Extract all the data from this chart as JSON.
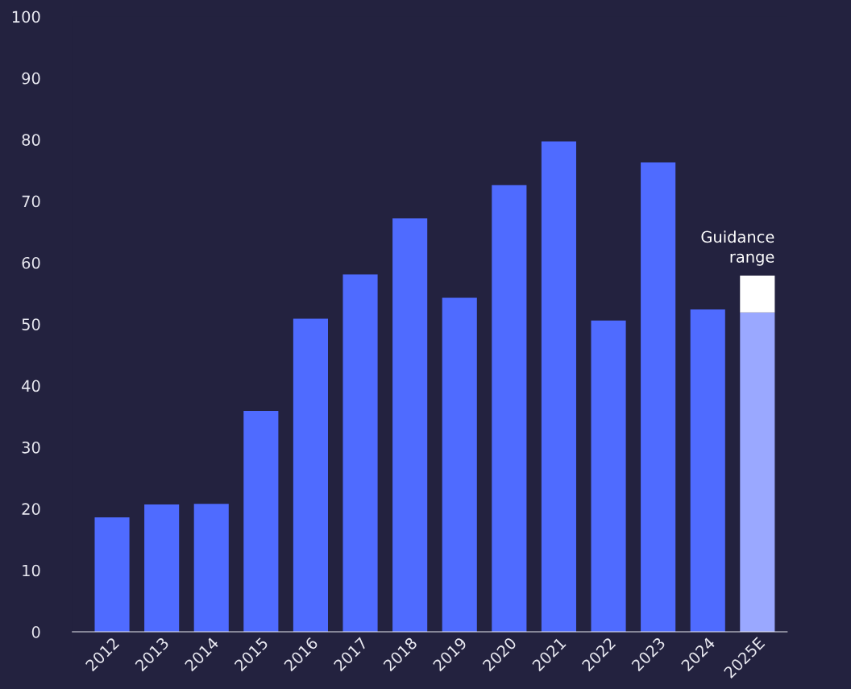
{
  "chart_data": {
    "type": "bar",
    "stacked": true,
    "categories": [
      "2012",
      "2013",
      "2014",
      "2015",
      "2016",
      "2017",
      "2018",
      "2019",
      "2020",
      "2021",
      "2022",
      "2023",
      "2024",
      "2025E"
    ],
    "series": [
      {
        "colors": [
          "#4f6bff",
          "#4f6bff",
          "#4f6bff",
          "#4f6bff",
          "#4f6bff",
          "#4f6bff",
          "#4f6bff",
          "#4f6bff",
          "#4f6bff",
          "#4f6bff",
          "#4f6bff",
          "#4f6bff",
          "#4f6bff",
          "#9aa8ff"
        ],
        "values": [
          18.6,
          20.7,
          20.8,
          35.9,
          50.9,
          58.1,
          67.2,
          54.3,
          72.6,
          79.7,
          50.6,
          76.3,
          52.4,
          51.9
        ]
      },
      {
        "color": "#ffffff",
        "values": [
          null,
          null,
          null,
          null,
          null,
          null,
          null,
          null,
          null,
          null,
          null,
          null,
          null,
          6.0
        ]
      }
    ],
    "ylim": [
      0,
      100
    ],
    "yticks": [
      0,
      10,
      20,
      30,
      40,
      50,
      60,
      70,
      80,
      90,
      100
    ],
    "grid": false,
    "legend": false,
    "annotations": [
      {
        "text": "Guidance\nrange",
        "x": "2025E",
        "y": 58
      }
    ]
  }
}
